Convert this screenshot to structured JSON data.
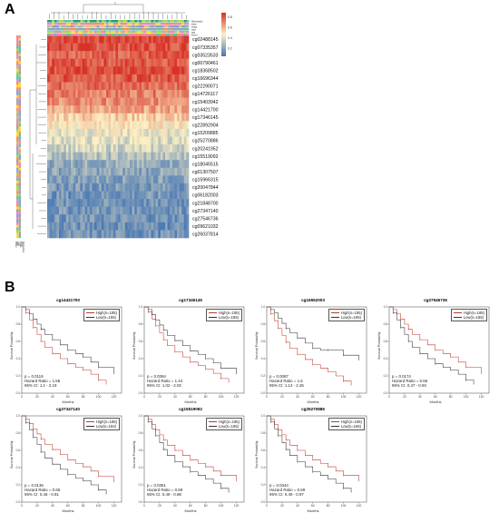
{
  "panel_a": {
    "letter": "A",
    "top_annotations": [
      "Methylatity",
      "state",
      "stage",
      "type",
      "age",
      "Event"
    ],
    "row_labels": [
      "cg02488145",
      "cg07335357",
      "cg03523533",
      "cg00790461",
      "cg18368502",
      "cg16696344",
      "cg22290071",
      "cg14726117",
      "cg15403942",
      "cg14421700",
      "cg17346145",
      "cg22892904",
      "cg15209885",
      "cg25270886",
      "cg20241952",
      "cg15519092",
      "cg18045515",
      "cg01307507",
      "cg15966315",
      "cg20047844",
      "cg06182003",
      "cg21848700",
      "cg27347140",
      "cg27546736",
      "cg09621032",
      "cg26037814"
    ],
    "color_key_ticks": [
      "0.8",
      "0.6",
      "0.4",
      "0.2"
    ],
    "colors": {
      "high": "#d7301f",
      "mid": "#fdf1c3",
      "low": "#4575b4"
    }
  },
  "panel_b": {
    "letter": "B",
    "plots": [
      {
        "title": "cg14421700",
        "legend_high": "High(n=185)",
        "legend_low": "Low(n=185)",
        "p": "p = 0.0119",
        "hr": "Hazard Ratio = 1.55",
        "ci": "95% CI: 1.1 - 2.19",
        "x_label": "Months",
        "y_label": "Survival Probability",
        "chart_data": {
          "type": "line",
          "series": [
            {
              "name": "High(n=185)",
              "x": [
                0,
                5,
                10,
                15,
                20,
                25,
                30,
                40,
                50,
                60,
                70,
                80,
                90,
                100,
                110
              ],
              "y": [
                1,
                0.93,
                0.85,
                0.76,
                0.68,
                0.6,
                0.53,
                0.46,
                0.4,
                0.34,
                0.3,
                0.27,
                0.22,
                0.15,
                0.1
              ]
            },
            {
              "name": "Low(n=185)",
              "x": [
                0,
                5,
                10,
                15,
                20,
                25,
                30,
                40,
                50,
                60,
                70,
                80,
                90,
                100,
                120
              ],
              "y": [
                1,
                0.97,
                0.92,
                0.86,
                0.8,
                0.74,
                0.68,
                0.62,
                0.56,
                0.5,
                0.46,
                0.42,
                0.36,
                0.3,
                0.22
              ]
            }
          ],
          "xlim": [
            0,
            130
          ],
          "ylim": [
            0,
            1
          ]
        }
      },
      {
        "title": "cg17346145",
        "legend_high": "High(n=185)",
        "legend_low": "Low(n=185)",
        "p": "p = 0.0394",
        "hr": "Hazard Ratio = 1.44",
        "ci": "95% CI: 1.02 - 2.02",
        "x_label": "Months",
        "y_label": "Survival Probability",
        "chart_data": {
          "type": "line",
          "series": [
            {
              "name": "High(n=185)",
              "x": [
                0,
                5,
                10,
                15,
                20,
                25,
                30,
                40,
                50,
                60,
                70,
                80,
                90,
                100,
                110
              ],
              "y": [
                1,
                0.94,
                0.86,
                0.78,
                0.7,
                0.62,
                0.55,
                0.48,
                0.42,
                0.36,
                0.32,
                0.28,
                0.23,
                0.17,
                0.12
              ]
            },
            {
              "name": "Low(n=185)",
              "x": [
                0,
                5,
                10,
                15,
                20,
                25,
                30,
                40,
                50,
                60,
                70,
                80,
                90,
                100,
                120
              ],
              "y": [
                1,
                0.97,
                0.91,
                0.85,
                0.79,
                0.73,
                0.67,
                0.61,
                0.55,
                0.49,
                0.45,
                0.4,
                0.35,
                0.29,
                0.22
              ]
            }
          ],
          "xlim": [
            0,
            130
          ],
          "ylim": [
            0,
            1
          ]
        }
      },
      {
        "title": "cg16652003",
        "legend_high": "High(n=185)",
        "legend_low": "Low(n=185)",
        "p": "p = 0.0087",
        "hr": "Hazard Ratio = 1.6",
        "ci": "95% CI: 1.14 - 2.26",
        "x_label": "Months",
        "y_label": "Survival Probability",
        "chart_data": {
          "type": "line",
          "series": [
            {
              "name": "High(n=185)",
              "x": [
                0,
                5,
                10,
                15,
                20,
                25,
                30,
                40,
                50,
                60,
                70,
                80,
                90,
                100,
                110
              ],
              "y": [
                1,
                0.92,
                0.84,
                0.75,
                0.67,
                0.59,
                0.52,
                0.45,
                0.39,
                0.33,
                0.29,
                0.25,
                0.2,
                0.14,
                0.09
              ]
            },
            {
              "name": "Low(n=185)",
              "x": [
                0,
                5,
                10,
                15,
                20,
                25,
                30,
                40,
                50,
                60,
                70,
                80,
                90,
                100,
                120
              ],
              "y": [
                1,
                0.97,
                0.93,
                0.87,
                0.81,
                0.75,
                0.7,
                0.64,
                0.58,
                0.52,
                0.5,
                0.5,
                0.5,
                0.44,
                0.38
              ]
            }
          ],
          "xlim": [
            0,
            130
          ],
          "ylim": [
            0,
            1
          ]
        }
      },
      {
        "title": "cg27546736",
        "legend_high": "High(n=185)",
        "legend_low": "Low(n=185)",
        "p": "p = 0.0174",
        "hr": "Hazard Ratio = 0.66",
        "ci": "95% CI: 0.47 - 0.93",
        "x_label": "Months",
        "y_label": "Survival Probability",
        "chart_data": {
          "type": "line",
          "series": [
            {
              "name": "High(n=185)",
              "x": [
                0,
                5,
                10,
                15,
                20,
                25,
                30,
                40,
                50,
                60,
                70,
                80,
                90,
                100,
                120
              ],
              "y": [
                1,
                0.97,
                0.92,
                0.86,
                0.8,
                0.74,
                0.68,
                0.62,
                0.56,
                0.5,
                0.46,
                0.42,
                0.36,
                0.3,
                0.22
              ]
            },
            {
              "name": "Low(n=185)",
              "x": [
                0,
                5,
                10,
                15,
                20,
                25,
                30,
                40,
                50,
                60,
                70,
                80,
                90,
                100,
                110
              ],
              "y": [
                1,
                0.93,
                0.85,
                0.76,
                0.68,
                0.6,
                0.53,
                0.46,
                0.4,
                0.34,
                0.3,
                0.27,
                0.22,
                0.15,
                0.1
              ]
            }
          ],
          "xlim": [
            0,
            130
          ],
          "ylim": [
            0,
            1
          ]
        }
      },
      {
        "title": "cg27347140",
        "legend_high": "High(n=185)",
        "legend_low": "Low(n=184)",
        "p": "p = 0.0136",
        "hr": "Hazard Ratio = 0.65",
        "ci": "95% CI: 0.46 - 0.91",
        "x_label": "Months",
        "y_label": "Survival Probability",
        "chart_data": {
          "type": "line",
          "series": [
            {
              "name": "High(n=185)",
              "x": [
                0,
                5,
                10,
                15,
                20,
                25,
                30,
                40,
                50,
                60,
                70,
                80,
                90,
                100,
                120
              ],
              "y": [
                1,
                0.96,
                0.91,
                0.85,
                0.79,
                0.73,
                0.67,
                0.61,
                0.55,
                0.49,
                0.45,
                0.41,
                0.36,
                0.3,
                0.23
              ]
            },
            {
              "name": "Low(n=184)",
              "x": [
                0,
                5,
                10,
                15,
                20,
                25,
                30,
                40,
                50,
                60,
                70,
                80,
                90,
                100,
                110
              ],
              "y": [
                1,
                0.92,
                0.84,
                0.75,
                0.67,
                0.58,
                0.51,
                0.44,
                0.38,
                0.32,
                0.28,
                0.25,
                0.2,
                0.14,
                0.09
              ]
            }
          ],
          "xlim": [
            0,
            130
          ],
          "ylim": [
            0,
            1
          ]
        }
      },
      {
        "title": "cg15519092",
        "legend_high": "High(n=185)",
        "legend_low": "Low(n=185)",
        "p": "p = 0.0351",
        "hr": "Hazard Ratio = 0.69",
        "ci": "95% CI: 0.49 - 0.98",
        "x_label": "Months",
        "y_label": "Survival Probability",
        "chart_data": {
          "type": "line",
          "series": [
            {
              "name": "High(n=185)",
              "x": [
                0,
                5,
                10,
                15,
                20,
                25,
                30,
                40,
                50,
                60,
                70,
                80,
                90,
                100,
                120
              ],
              "y": [
                1,
                0.96,
                0.9,
                0.84,
                0.78,
                0.72,
                0.66,
                0.6,
                0.54,
                0.49,
                0.45,
                0.41,
                0.36,
                0.31,
                0.24
              ]
            },
            {
              "name": "Low(n=185)",
              "x": [
                0,
                5,
                10,
                15,
                20,
                25,
                30,
                40,
                50,
                60,
                70,
                80,
                90,
                100,
                110
              ],
              "y": [
                1,
                0.93,
                0.85,
                0.77,
                0.69,
                0.61,
                0.54,
                0.47,
                0.41,
                0.35,
                0.31,
                0.27,
                0.22,
                0.16,
                0.11
              ]
            }
          ],
          "xlim": [
            0,
            130
          ],
          "ylim": [
            0,
            1
          ]
        }
      },
      {
        "title": "cg25270886",
        "legend_high": "High(n=185)",
        "legend_low": "Low(n=185)",
        "p": "p = 0.0344",
        "hr": "Hazard Ratio = 0.69",
        "ci": "95% CI: 0.49 - 0.97",
        "x_label": "Months",
        "y_label": "Survival Probability",
        "chart_data": {
          "type": "line",
          "series": [
            {
              "name": "High(n=185)",
              "x": [
                0,
                5,
                10,
                15,
                20,
                25,
                30,
                40,
                50,
                60,
                70,
                80,
                90,
                100,
                120
              ],
              "y": [
                1,
                0.96,
                0.9,
                0.84,
                0.78,
                0.72,
                0.66,
                0.6,
                0.54,
                0.49,
                0.45,
                0.41,
                0.36,
                0.31,
                0.24
              ]
            },
            {
              "name": "Low(n=185)",
              "x": [
                0,
                5,
                10,
                15,
                20,
                25,
                30,
                40,
                50,
                60,
                70,
                80,
                90,
                100,
                110
              ],
              "y": [
                1,
                0.93,
                0.85,
                0.77,
                0.69,
                0.61,
                0.54,
                0.47,
                0.41,
                0.35,
                0.31,
                0.27,
                0.22,
                0.16,
                0.11
              ]
            }
          ],
          "xlim": [
            0,
            130
          ],
          "ylim": [
            0,
            1
          ]
        }
      }
    ],
    "x_ticks": [
      "0",
      "20",
      "40",
      "60",
      "80",
      "100",
      "120"
    ],
    "y_ticks": [
      "0.0",
      "0.2",
      "0.4",
      "0.6",
      "0.8",
      "1.0"
    ]
  }
}
